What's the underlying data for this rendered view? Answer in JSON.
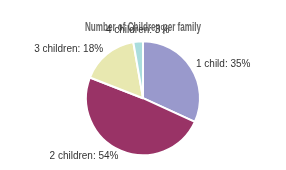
{
  "chart_data": {
    "type": "pie",
    "title": "Number of Children per family",
    "values": [
      35,
      54,
      18,
      3
    ],
    "value_labels": [
      "1 child: 35%",
      "2 children: 54%",
      "3 children: 18%",
      "4 children: 3%"
    ],
    "colors": [
      "#9999cc",
      "#993366",
      "#e8e8b0",
      "#aadddd"
    ],
    "data_labels": true
  }
}
